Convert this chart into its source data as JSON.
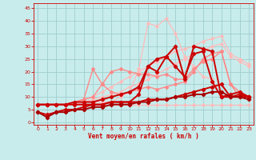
{
  "bg_color": "#c8ecec",
  "grid_color": "#a0cccc",
  "xlabel": "Vent moyen/en rafales ( km/h )",
  "xlabel_color": "#cc0000",
  "tick_color": "#cc0000",
  "ylabel_ticks": [
    0,
    5,
    10,
    15,
    20,
    25,
    30,
    35,
    40,
    45
  ],
  "xlim": [
    -0.5,
    23.5
  ],
  "ylim": [
    -1,
    47
  ],
  "xticks": [
    0,
    1,
    2,
    3,
    4,
    5,
    6,
    7,
    8,
    9,
    10,
    11,
    12,
    13,
    14,
    15,
    16,
    17,
    18,
    19,
    20,
    21,
    22,
    23
  ],
  "lines": [
    {
      "x": [
        0,
        1,
        2,
        3,
        4,
        5,
        6,
        7,
        8,
        9,
        10,
        11,
        12,
        13,
        14,
        15,
        16,
        17,
        18,
        19,
        20,
        21,
        22,
        23
      ],
      "y": [
        7,
        7,
        7,
        7,
        7,
        7,
        7,
        7,
        7,
        7,
        7,
        7,
        7,
        7,
        7,
        7,
        7,
        7,
        7,
        7,
        7,
        7,
        7,
        7
      ],
      "color": "#ffbbbb",
      "lw": 0.9,
      "marker": "D",
      "ms": 1.8
    },
    {
      "x": [
        0,
        1,
        2,
        3,
        4,
        5,
        6,
        7,
        8,
        9,
        10,
        11,
        12,
        13,
        14,
        15,
        16,
        17,
        18,
        19,
        20,
        21,
        22,
        23
      ],
      "y": [
        7,
        7,
        7,
        7,
        7,
        8,
        9,
        10,
        11,
        12,
        14,
        15,
        17,
        19,
        21,
        23,
        25,
        27,
        28,
        30,
        31,
        26,
        24,
        22
      ],
      "color": "#ffbbbb",
      "lw": 0.9,
      "marker": "D",
      "ms": 1.8
    },
    {
      "x": [
        0,
        1,
        2,
        3,
        4,
        5,
        6,
        7,
        8,
        9,
        10,
        11,
        12,
        13,
        14,
        15,
        16,
        17,
        18,
        19,
        20,
        21,
        22,
        23
      ],
      "y": [
        7,
        7,
        7,
        7,
        8,
        9,
        10,
        12,
        14,
        16,
        18,
        20,
        22,
        24,
        26,
        28,
        29,
        30,
        32,
        33,
        34,
        27,
        25,
        23
      ],
      "color": "#ffbbbb",
      "lw": 0.9,
      "marker": "D",
      "ms": 1.8
    },
    {
      "x": [
        0,
        1,
        2,
        3,
        4,
        5,
        6,
        7,
        8,
        9,
        10,
        11,
        12,
        13,
        14,
        15,
        16,
        17,
        18,
        19,
        20,
        21,
        22,
        23
      ],
      "y": [
        7,
        7,
        7,
        7,
        7,
        8,
        8,
        8,
        8,
        10,
        12,
        21,
        39,
        38,
        41,
        35,
        26,
        22,
        18,
        17,
        10,
        10,
        10,
        10
      ],
      "color": "#ffbbbb",
      "lw": 0.9,
      "marker": "D",
      "ms": 1.8
    },
    {
      "x": [
        0,
        1,
        2,
        3,
        4,
        5,
        6,
        7,
        8,
        9,
        10,
        11,
        12,
        13,
        14,
        15,
        16,
        17,
        18,
        19,
        20,
        21,
        22,
        23
      ],
      "y": [
        7,
        7,
        7,
        7,
        8,
        9,
        21,
        15,
        12,
        11,
        12,
        13,
        14,
        13,
        14,
        15,
        16,
        20,
        25,
        27,
        28,
        15,
        12,
        10
      ],
      "color": "#ff8888",
      "lw": 1.0,
      "marker": "D",
      "ms": 2.0
    },
    {
      "x": [
        0,
        1,
        2,
        3,
        4,
        5,
        6,
        7,
        8,
        9,
        10,
        11,
        12,
        13,
        14,
        15,
        16,
        17,
        18,
        19,
        20,
        21,
        22,
        23
      ],
      "y": [
        7,
        7,
        7,
        7,
        8,
        9,
        10,
        15,
        20,
        21,
        20,
        19,
        19,
        18,
        19,
        17,
        17,
        21,
        24,
        25,
        28,
        15,
        10,
        10
      ],
      "color": "#ff8888",
      "lw": 1.0,
      "marker": "D",
      "ms": 2.0
    },
    {
      "x": [
        0,
        1,
        2,
        3,
        4,
        5,
        6,
        7,
        8,
        9,
        10,
        11,
        12,
        13,
        14,
        15,
        16,
        17,
        18,
        19,
        20,
        21,
        22,
        23
      ],
      "y": [
        7,
        7,
        7,
        7,
        7,
        7,
        7,
        7,
        8,
        8,
        8,
        8,
        9,
        9,
        9,
        10,
        11,
        12,
        13,
        14,
        15,
        10,
        10,
        10
      ],
      "color": "#cc0000",
      "lw": 1.4,
      "marker": "D",
      "ms": 2.2
    },
    {
      "x": [
        0,
        1,
        2,
        3,
        4,
        5,
        6,
        7,
        8,
        9,
        10,
        11,
        12,
        13,
        14,
        15,
        16,
        17,
        18,
        19,
        20,
        21,
        22,
        23
      ],
      "y": [
        7,
        7,
        7,
        7,
        8,
        8,
        8,
        9,
        10,
        11,
        12,
        14,
        22,
        20,
        26,
        22,
        18,
        27,
        28,
        16,
        10,
        10,
        11,
        10
      ],
      "color": "#cc0000",
      "lw": 1.4,
      "marker": "D",
      "ms": 2.2
    },
    {
      "x": [
        0,
        1,
        2,
        3,
        4,
        5,
        6,
        7,
        8,
        9,
        10,
        11,
        12,
        13,
        14,
        15,
        16,
        17,
        18,
        19,
        20,
        21,
        22,
        23
      ],
      "y": [
        4,
        3,
        4,
        5,
        5,
        6,
        7,
        7,
        8,
        8,
        8,
        11,
        22,
        25,
        26,
        30,
        17,
        30,
        29,
        28,
        10,
        11,
        12,
        10
      ],
      "color": "#cc0000",
      "lw": 1.4,
      "marker": "D",
      "ms": 2.2
    },
    {
      "x": [
        0,
        1,
        2,
        3,
        4,
        5,
        6,
        7,
        8,
        9,
        10,
        11,
        12,
        13,
        14,
        15,
        16,
        17,
        18,
        19,
        20,
        21,
        22,
        23
      ],
      "y": [
        4,
        2,
        4,
        4,
        5,
        5,
        6,
        6,
        7,
        7,
        7,
        8,
        8,
        9,
        9,
        10,
        10,
        11,
        11,
        12,
        12,
        10,
        10,
        9
      ],
      "color": "#aa0000",
      "lw": 1.4,
      "marker": "D",
      "ms": 2.2
    }
  ]
}
